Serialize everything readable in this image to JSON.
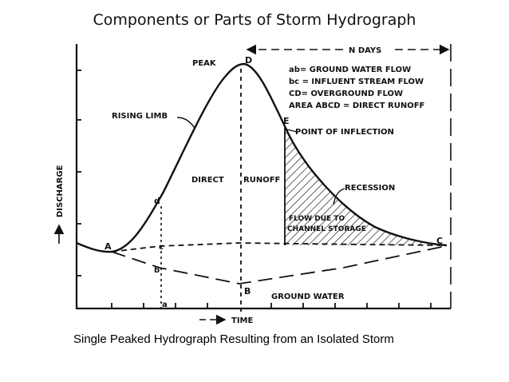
{
  "title": "Components or Parts of Storm Hydrograph",
  "caption": "Single Peaked Hydrograph Resulting from an Isolated Storm",
  "axes": {
    "x_label": "TIME",
    "y_label": "DISCHARGE"
  },
  "labels": {
    "n_days": "N DAYS",
    "peak": "PEAK",
    "rising_limb": "RISING LIMB",
    "direct": "DIRECT",
    "runoff": "RUNOFF",
    "point_of_inflection": "POINT OF INFLECTION",
    "recession": "RECESSION",
    "flow_due_to": "FLOW DUE TO",
    "channel_storage": "CHANNEL STORAGE",
    "ground_water": "GROUND WATER"
  },
  "legend": [
    "ab= GROUND WATER FLOW",
    "bc = INFLUENT STREAM FLOW",
    "CD= OVERGROUND FLOW",
    "AREA ABCD = DIRECT RUNOFF"
  ],
  "points": {
    "A": "A",
    "B": "B",
    "C": "C",
    "D": "D",
    "E": "E",
    "a": "a",
    "b": "b",
    "c": "c",
    "d": "d"
  },
  "colors": {
    "ink": "#111111",
    "background": "#ffffff"
  }
}
